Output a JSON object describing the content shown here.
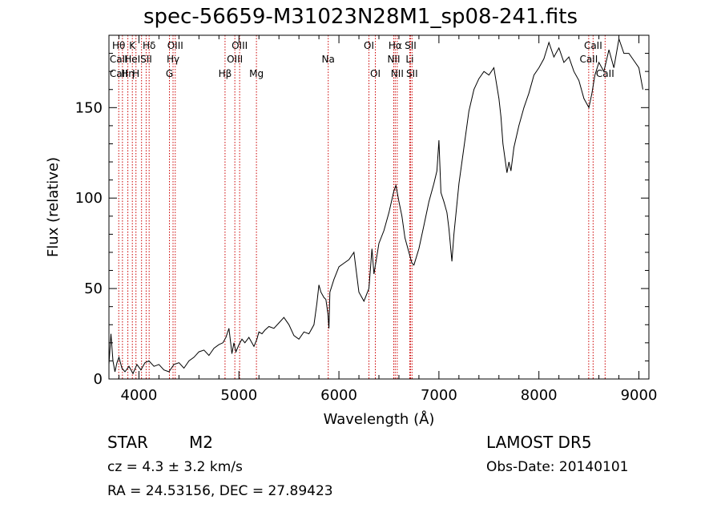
{
  "chart_data": {
    "type": "line",
    "title": "spec-56659-M31023N28M1_sp08-241.fits",
    "xlabel": "Wavelength (Å)",
    "ylabel": "Flux (relative)",
    "xlim": [
      3700,
      9100
    ],
    "ylim": [
      0,
      190
    ],
    "x_ticks": [
      4000,
      5000,
      6000,
      7000,
      8000,
      9000
    ],
    "y_ticks": [
      0,
      50,
      100,
      150
    ],
    "grid": false,
    "line_color": "#000000",
    "series": [
      {
        "x": [
          3700,
          3720,
          3740,
          3760,
          3780,
          3800,
          3830,
          3860,
          3900,
          3940,
          3980,
          4020,
          4060,
          4100,
          4150,
          4200,
          4250,
          4300,
          4350,
          4400,
          4450,
          4500,
          4550,
          4600,
          4650,
          4700,
          4750,
          4800,
          4840,
          4870,
          4900,
          4930,
          4950,
          4970,
          5000,
          5030,
          5060,
          5100,
          5150,
          5180,
          5200,
          5230,
          5260,
          5300,
          5350,
          5400,
          5450,
          5500,
          5550,
          5600,
          5650,
          5700,
          5750,
          5780,
          5800,
          5820,
          5850,
          5870,
          5890,
          5900,
          5910,
          5950,
          6000,
          6050,
          6100,
          6150,
          6200,
          6250,
          6300,
          6330,
          6350,
          6400,
          6450,
          6500,
          6550,
          6570,
          6600,
          6630,
          6660,
          6700,
          6730,
          6750,
          6800,
          6850,
          6900,
          6950,
          6980,
          7000,
          7020,
          7050,
          7080,
          7100,
          7130,
          7150,
          7200,
          7250,
          7300,
          7350,
          7400,
          7450,
          7500,
          7550,
          7600,
          7620,
          7640,
          7660,
          7680,
          7700,
          7720,
          7750,
          7800,
          7850,
          7900,
          7950,
          8000,
          8050,
          8100,
          8150,
          8200,
          8250,
          8300,
          8350,
          8400,
          8450,
          8500,
          8530,
          8560,
          8600,
          8650,
          8700,
          8750,
          8800,
          8850,
          8900,
          8950,
          9000,
          9040
        ],
        "y": [
          8,
          25,
          10,
          4,
          9,
          12,
          6,
          4,
          7,
          3,
          8,
          5,
          9,
          10,
          7,
          8,
          5,
          4,
          8,
          9,
          6,
          10,
          12,
          15,
          16,
          13,
          17,
          19,
          20,
          23,
          28,
          14,
          20,
          15,
          19,
          22,
          20,
          23,
          18,
          22,
          26,
          25,
          27,
          29,
          28,
          31,
          34,
          30,
          24,
          22,
          26,
          25,
          30,
          42,
          52,
          48,
          45,
          44,
          36,
          28,
          48,
          55,
          62,
          64,
          66,
          70,
          48,
          43,
          50,
          72,
          58,
          75,
          82,
          92,
          104,
          107,
          98,
          90,
          78,
          70,
          64,
          63,
          72,
          85,
          98,
          108,
          115,
          132,
          103,
          98,
          92,
          83,
          65,
          80,
          108,
          128,
          148,
          160,
          166,
          170,
          168,
          172,
          155,
          145,
          130,
          122,
          114,
          120,
          115,
          128,
          140,
          150,
          158,
          168,
          172,
          177,
          186,
          178,
          183,
          175,
          178,
          170,
          165,
          155,
          150,
          158,
          168,
          175,
          170,
          182,
          172,
          188,
          180,
          180,
          176,
          172,
          160
        ]
      }
    ],
    "annotations": {
      "color": "#cc0000",
      "lines": [
        {
          "x": 3798,
          "top": "Hθ",
          "mid": "CaII",
          "bot": "CaII"
        },
        {
          "x": 3835
        },
        {
          "x": 3889,
          "bot": "Hη"
        },
        {
          "x": 3934,
          "top": "K",
          "mid": "HeI"
        },
        {
          "x": 3970,
          "bot": "H"
        },
        {
          "x": 4026
        },
        {
          "x": 4072,
          "mid": "SII"
        },
        {
          "x": 4102,
          "top": "Hδ"
        },
        {
          "x": 4305,
          "bot": "G"
        },
        {
          "x": 4341,
          "mid": "Hγ"
        },
        {
          "x": 4363,
          "top": "OIII"
        },
        {
          "x": 4861,
          "bot": "Hβ"
        },
        {
          "x": 4959,
          "mid": "OIII"
        },
        {
          "x": 5007,
          "top": "OIII"
        },
        {
          "x": 5175,
          "bot": "Mg"
        },
        {
          "x": 5893,
          "mid": "Na"
        },
        {
          "x": 6300,
          "top": "OI"
        },
        {
          "x": 6364,
          "bot": "OI"
        },
        {
          "x": 6548,
          "mid": "NII"
        },
        {
          "x": 6563,
          "top": "Hα"
        },
        {
          "x": 6583,
          "bot": "NII"
        },
        {
          "x": 6708,
          "mid": "Li"
        },
        {
          "x": 6716,
          "top": "SII"
        },
        {
          "x": 6731,
          "bot": "SII"
        },
        {
          "x": 8498,
          "mid": "CaII"
        },
        {
          "x": 8542,
          "top": "CaII"
        },
        {
          "x": 8662,
          "bot": "CaII"
        }
      ]
    }
  },
  "info": {
    "class": "STAR",
    "subclass": "M2",
    "survey": "LAMOST  DR5",
    "cz": "cz = 4.3 ± 3.2 km/s",
    "obs_date": "Obs-Date: 20140101",
    "coords": "RA =  24.53156, DEC =  27.89423"
  }
}
